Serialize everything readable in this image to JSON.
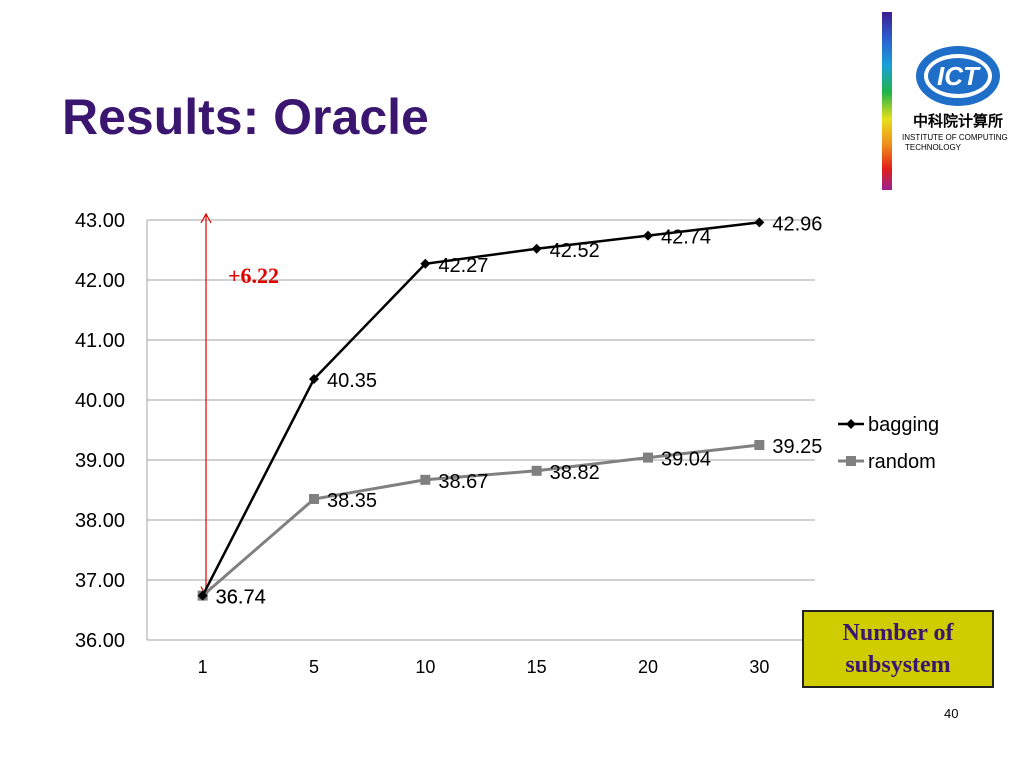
{
  "slide": {
    "title": "Results: Oracle",
    "page_number": "40",
    "note_box": "Number of subsystem",
    "logo": {
      "text": "ICT",
      "chinese_text": "中科院计算所",
      "line1": "INSTITUTE OF COMPUTING",
      "line2": "TECHNOLOGY"
    }
  },
  "colors": {
    "title": "#3a1670",
    "bagging": "#000000",
    "random": "#808080",
    "annotation": "#e00000",
    "note_box_bg": "#cfcc00"
  },
  "chart_data": {
    "type": "line",
    "categories": [
      "1",
      "5",
      "10",
      "15",
      "20",
      "30"
    ],
    "series": [
      {
        "name": "bagging",
        "values": [
          36.74,
          40.35,
          42.27,
          42.52,
          42.74,
          42.96
        ],
        "marker": "diamond"
      },
      {
        "name": "random",
        "values": [
          36.74,
          38.35,
          38.67,
          38.82,
          39.04,
          39.25
        ],
        "marker": "square"
      }
    ],
    "ylim": [
      36.0,
      43.0
    ],
    "y_ticks": [
      "36.00",
      "37.00",
      "38.00",
      "39.00",
      "40.00",
      "41.00",
      "42.00",
      "43.00"
    ],
    "grid": true,
    "legend": "right",
    "annotation": {
      "text": "+6.22",
      "from": 36.74,
      "to": 43.0
    }
  }
}
